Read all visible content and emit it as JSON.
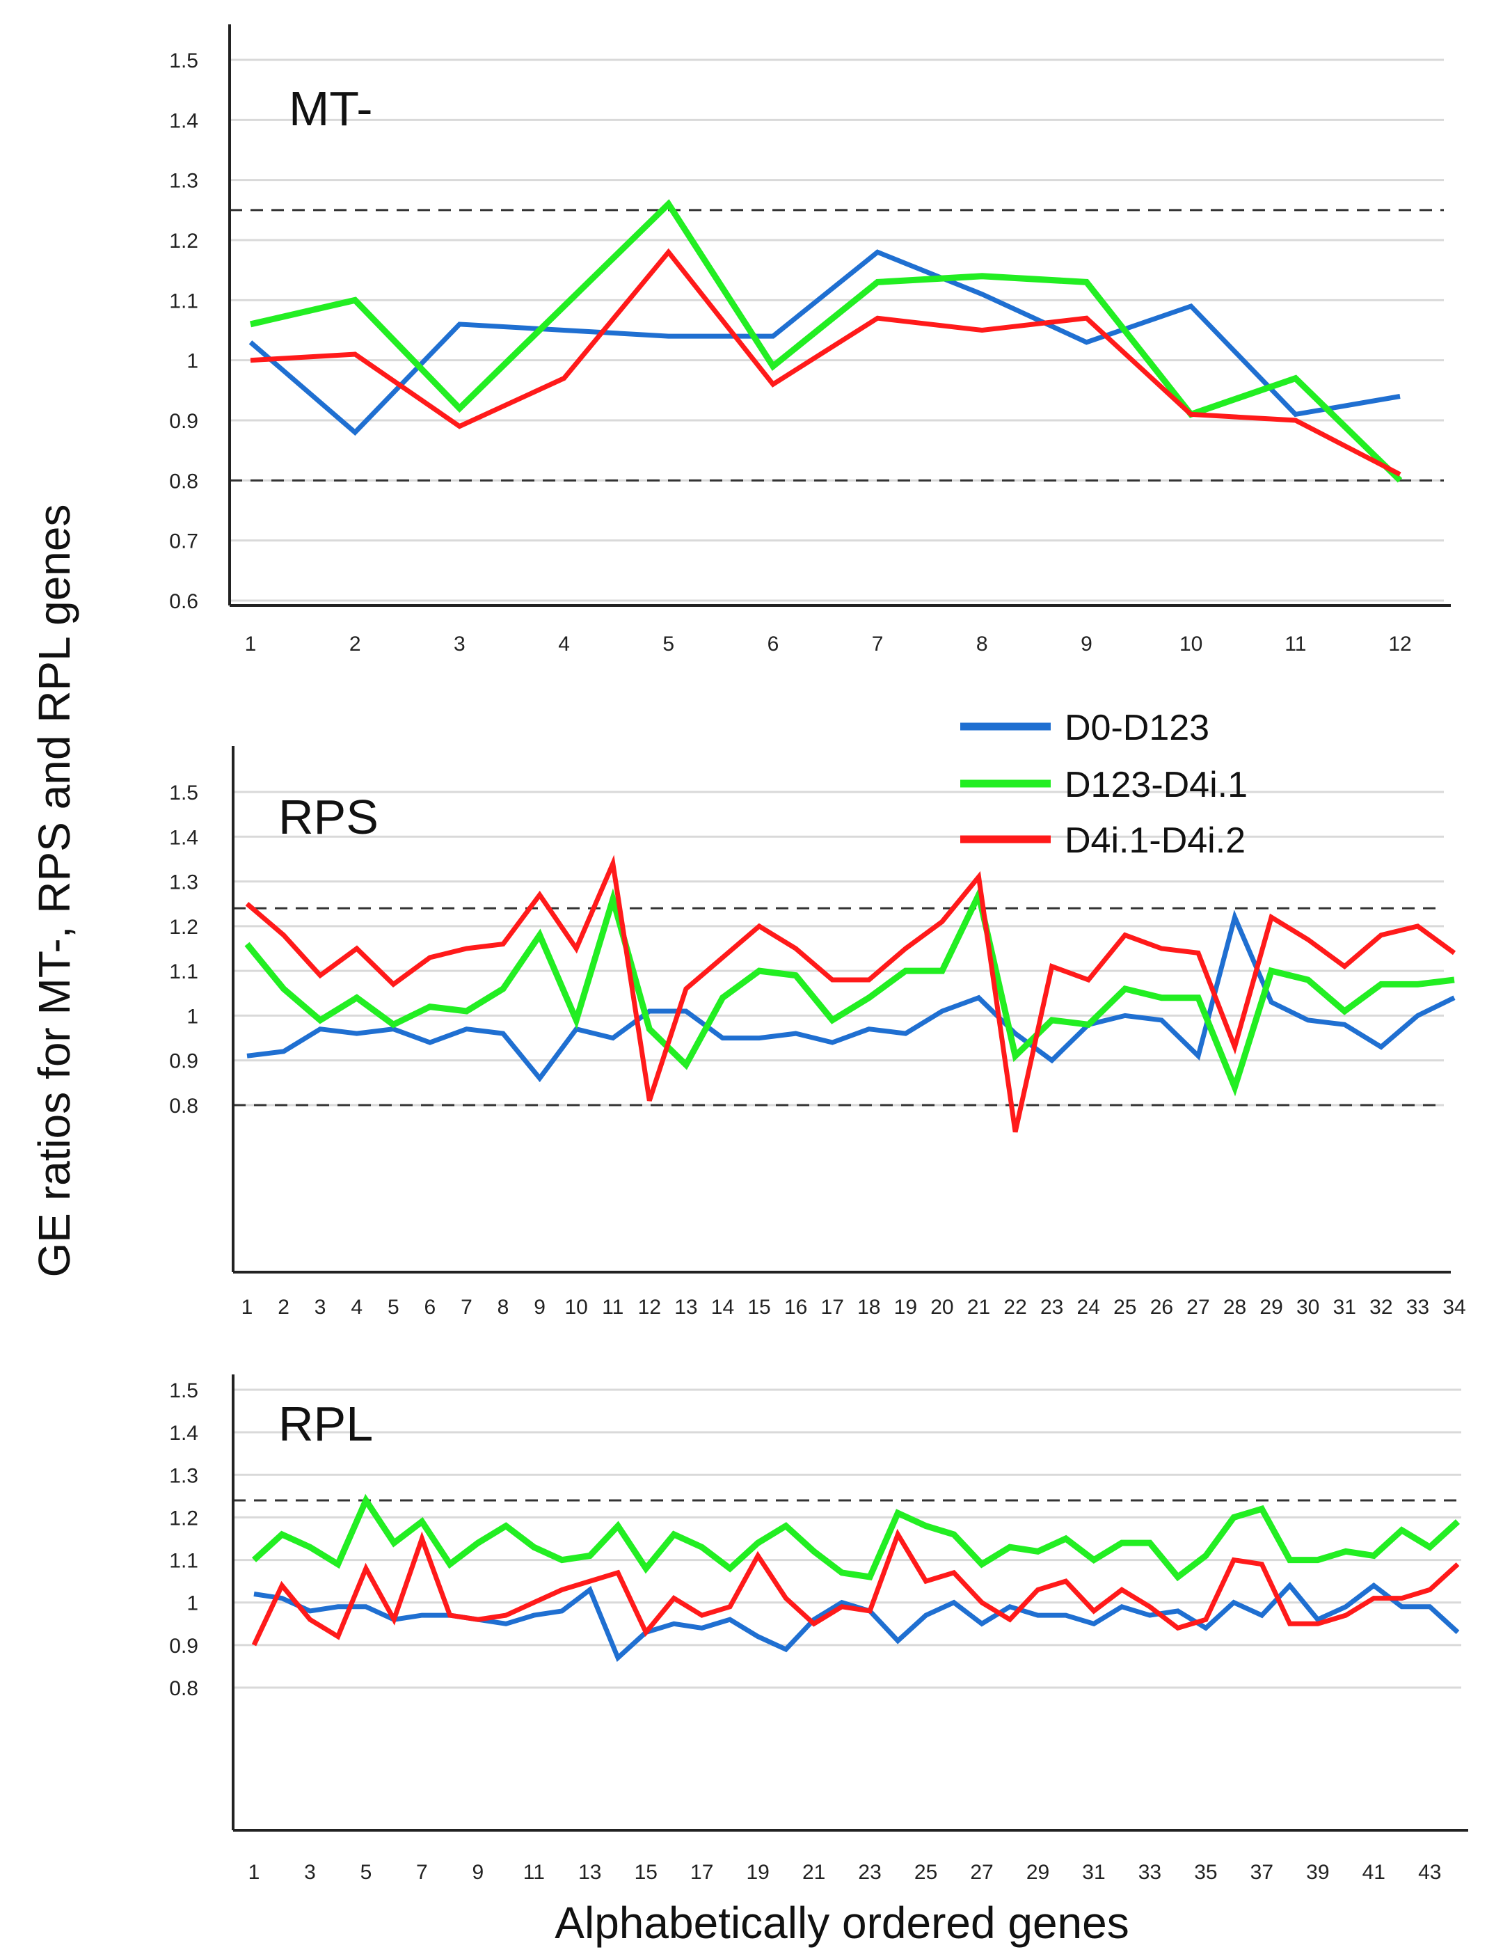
{
  "chart_data": {
    "type": "line",
    "ylabel": "GE ratios for MT-, RPS and RPL genes",
    "xlabel": "Alphabetically ordered genes",
    "legend": {
      "placement": "top-right of RPS panel",
      "entries": [
        {
          "name": "D0-D123",
          "color": "#1f6fd1"
        },
        {
          "name": "D123-D4i.1",
          "color": "#22ee22"
        },
        {
          "name": "D4i.1-D4i.2",
          "color": "#ff1a1a"
        }
      ]
    },
    "panels": [
      {
        "label": "MT-",
        "ylim": [
          0.6,
          1.5
        ],
        "yticks": [
          "0.6",
          "0.7",
          "0.8",
          "0.9",
          "1",
          "1.1",
          "1.2",
          "1.3",
          "1.4",
          "1.5"
        ],
        "thresholds": [
          0.8,
          1.25
        ],
        "x": [
          1,
          2,
          3,
          4,
          5,
          6,
          7,
          8,
          9,
          10,
          11,
          12
        ],
        "xtick_labels": [
          "1",
          "2",
          "3",
          "4",
          "5",
          "6",
          "7",
          "8",
          "9",
          "10",
          "11",
          "12"
        ],
        "series": [
          {
            "name": "D0-D123",
            "values": [
              1.03,
              0.88,
              1.06,
              1.05,
              1.04,
              1.04,
              1.18,
              1.11,
              1.03,
              1.09,
              0.91,
              0.94
            ]
          },
          {
            "name": "D123-D4i.1",
            "values": [
              1.06,
              1.1,
              0.92,
              1.09,
              1.26,
              0.99,
              1.13,
              1.14,
              1.13,
              0.91,
              0.97,
              0.8
            ]
          },
          {
            "name": "D4i.1-D4i.2",
            "values": [
              1.0,
              1.01,
              0.89,
              0.97,
              1.18,
              0.96,
              1.07,
              1.05,
              1.07,
              0.91,
              0.9,
              0.81
            ]
          }
        ]
      },
      {
        "label": "RPS",
        "ylim": [
          0.7,
          1.5
        ],
        "yticks": [
          "0.8",
          "0.9",
          "1",
          "1.1",
          "1.2",
          "1.3",
          "1.4",
          "1.5"
        ],
        "thresholds": [
          0.8,
          1.24
        ],
        "x": [
          1,
          2,
          3,
          4,
          5,
          6,
          7,
          8,
          9,
          10,
          11,
          12,
          13,
          14,
          15,
          16,
          17,
          18,
          19,
          20,
          21,
          22,
          23,
          24,
          25,
          26,
          27,
          28,
          29,
          30,
          31,
          32,
          33,
          34
        ],
        "xtick_labels": [
          "1",
          "2",
          "3",
          "4",
          "5",
          "6",
          "7",
          "8",
          "9",
          "10",
          "11",
          "12",
          "13",
          "14",
          "15",
          "16",
          "17",
          "18",
          "19",
          "20",
          "21",
          "22",
          "23",
          "24",
          "25",
          "26",
          "27",
          "28",
          "29",
          "30",
          "31",
          "32",
          "33",
          "34"
        ],
        "series": [
          {
            "name": "D0-D123",
            "values": [
              0.91,
              0.92,
              0.97,
              0.96,
              0.97,
              0.94,
              0.97,
              0.96,
              0.86,
              0.97,
              0.95,
              1.01,
              1.01,
              0.95,
              0.95,
              0.96,
              0.94,
              0.97,
              0.96,
              1.01,
              1.04,
              0.96,
              0.9,
              0.98,
              1.0,
              0.99,
              0.91,
              1.22,
              1.03,
              0.99,
              0.98,
              0.93,
              1.0,
              1.04
            ]
          },
          {
            "name": "D123-D4i.1",
            "values": [
              1.16,
              1.06,
              0.99,
              1.04,
              0.98,
              1.02,
              1.01,
              1.06,
              1.18,
              0.99,
              1.26,
              0.97,
              0.89,
              1.04,
              1.1,
              1.09,
              0.99,
              1.04,
              1.1,
              1.1,
              1.27,
              0.91,
              0.99,
              0.98,
              1.06,
              1.04,
              1.04,
              0.84,
              1.1,
              1.08,
              1.01,
              1.07,
              1.07,
              1.08
            ]
          },
          {
            "name": "D4i.1-D4i.2",
            "values": [
              1.25,
              1.18,
              1.09,
              1.15,
              1.07,
              1.13,
              1.15,
              1.16,
              1.27,
              1.15,
              1.34,
              0.81,
              1.06,
              1.13,
              1.2,
              1.15,
              1.08,
              1.08,
              1.15,
              1.21,
              1.31,
              0.74,
              1.11,
              1.08,
              1.18,
              1.15,
              1.14,
              0.93,
              1.22,
              1.17,
              1.11,
              1.18,
              1.2,
              1.14
            ]
          }
        ]
      },
      {
        "label": "RPL",
        "ylim": [
          0.8,
          1.5
        ],
        "yticks": [
          "0.8",
          "0.9",
          "1",
          "1.1",
          "1.2",
          "1.3",
          "1.4",
          "1.5"
        ],
        "thresholds": [
          1.24
        ],
        "x": [
          1,
          2,
          3,
          4,
          5,
          6,
          7,
          8,
          9,
          10,
          11,
          12,
          13,
          14,
          15,
          16,
          17,
          18,
          19,
          20,
          21,
          22,
          23,
          24,
          25,
          26,
          27,
          28,
          29,
          30,
          31,
          32,
          33,
          34,
          35,
          36,
          37,
          38,
          39,
          40,
          41,
          42,
          43,
          44
        ],
        "xtick_labels": [
          "1",
          "3",
          "5",
          "7",
          "9",
          "11",
          "13",
          "15",
          "17",
          "19",
          "21",
          "23",
          "25",
          "27",
          "29",
          "31",
          "33",
          "35",
          "37",
          "39",
          "41",
          "43"
        ],
        "series": [
          {
            "name": "D0-D123",
            "values": [
              1.02,
              1.01,
              0.98,
              0.99,
              0.99,
              0.96,
              0.97,
              0.97,
              0.96,
              0.95,
              0.97,
              0.98,
              1.03,
              0.87,
              0.93,
              0.95,
              0.94,
              0.96,
              0.92,
              0.89,
              0.96,
              1.0,
              0.98,
              0.91,
              0.97,
              1.0,
              0.95,
              0.99,
              0.97,
              0.97,
              0.95,
              0.99,
              0.97,
              0.98,
              0.94,
              1.0,
              0.97,
              1.04,
              0.96,
              0.99,
              1.04,
              0.99,
              0.99,
              0.93
            ]
          },
          {
            "name": "D123-D4i.1",
            "values": [
              1.1,
              1.16,
              1.13,
              1.09,
              1.24,
              1.14,
              1.19,
              1.09,
              1.14,
              1.18,
              1.13,
              1.1,
              1.11,
              1.18,
              1.08,
              1.16,
              1.13,
              1.08,
              1.14,
              1.18,
              1.12,
              1.07,
              1.06,
              1.21,
              1.18,
              1.16,
              1.09,
              1.13,
              1.12,
              1.15,
              1.1,
              1.14,
              1.14,
              1.06,
              1.11,
              1.2,
              1.22,
              1.1,
              1.1,
              1.12,
              1.11,
              1.17,
              1.13,
              1.19
            ]
          },
          {
            "name": "D4i.1-D4i.2",
            "values": [
              0.9,
              1.04,
              0.96,
              0.92,
              1.08,
              0.96,
              1.15,
              0.97,
              0.96,
              0.97,
              1.0,
              1.03,
              1.05,
              1.07,
              0.93,
              1.01,
              0.97,
              0.99,
              1.11,
              1.01,
              0.95,
              0.99,
              0.98,
              1.16,
              1.05,
              1.07,
              1.0,
              0.96,
              1.03,
              1.05,
              0.98,
              1.03,
              0.99,
              0.94,
              0.96,
              1.1,
              1.09,
              0.95,
              0.95,
              0.97,
              1.01,
              1.01,
              1.03,
              1.09
            ]
          }
        ]
      }
    ]
  }
}
